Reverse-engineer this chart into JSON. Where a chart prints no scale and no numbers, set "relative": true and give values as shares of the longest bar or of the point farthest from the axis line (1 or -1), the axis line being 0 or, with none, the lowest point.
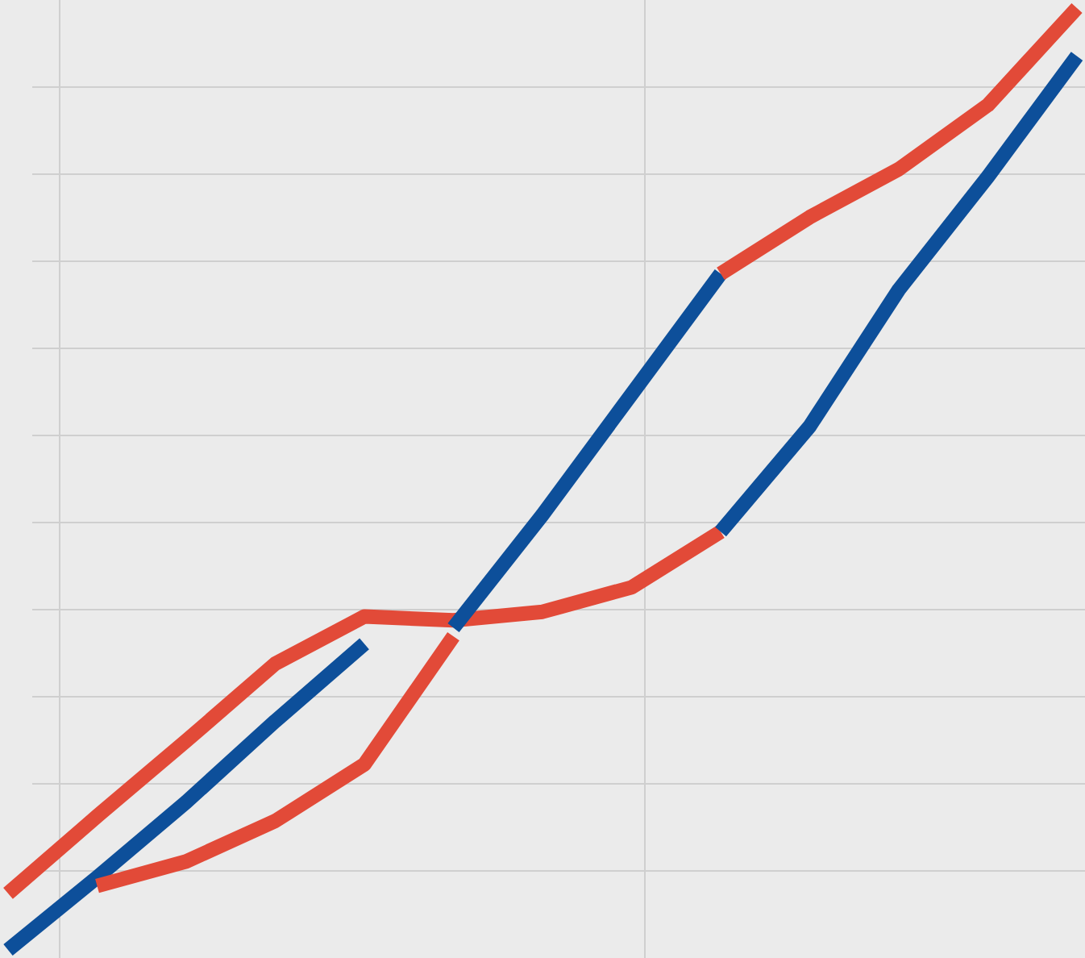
{
  "chart_data": {
    "type": "line",
    "relative": true,
    "grid": true,
    "line_style": "solid",
    "categories": [
      null,
      null,
      null,
      null,
      null,
      null,
      null,
      null,
      null,
      null,
      null,
      null,
      null
    ],
    "series": [
      {
        "color": "#e24a38",
        "values": [
          0.06,
          0.142,
          0.222,
          0.304,
          0.354,
          0.35,
          0.359,
          0.385,
          0.444,
          null,
          null,
          null,
          null
        ]
      },
      {
        "color": "#0d4f9a",
        "values": [
          null,
          null,
          null,
          null,
          null,
          null,
          null,
          null,
          0.444,
          0.556,
          0.701,
          0.821,
          0.949
        ]
      },
      {
        "color": "#0d4f9a",
        "values": [
          0,
          0.077,
          0.157,
          0.243,
          0.325,
          null,
          null,
          null,
          null,
          null,
          null,
          null,
          null
        ]
      },
      {
        "color": "#0d4f9a",
        "values": [
          null,
          null,
          null,
          null,
          null,
          0.342,
          0.462,
          0.59,
          0.718,
          null,
          null,
          null,
          null
        ]
      },
      {
        "color": "#e24a38",
        "values": [
          null,
          null,
          null,
          null,
          null,
          null,
          null,
          null,
          0.718,
          0.778,
          0.829,
          0.897,
          1
        ]
      },
      {
        "color": "#e24a38",
        "values": [
          null,
          0.068,
          0.094,
          0.137,
          0.197,
          0.333,
          null,
          null,
          null,
          null,
          null,
          null,
          null
        ]
      }
    ]
  }
}
